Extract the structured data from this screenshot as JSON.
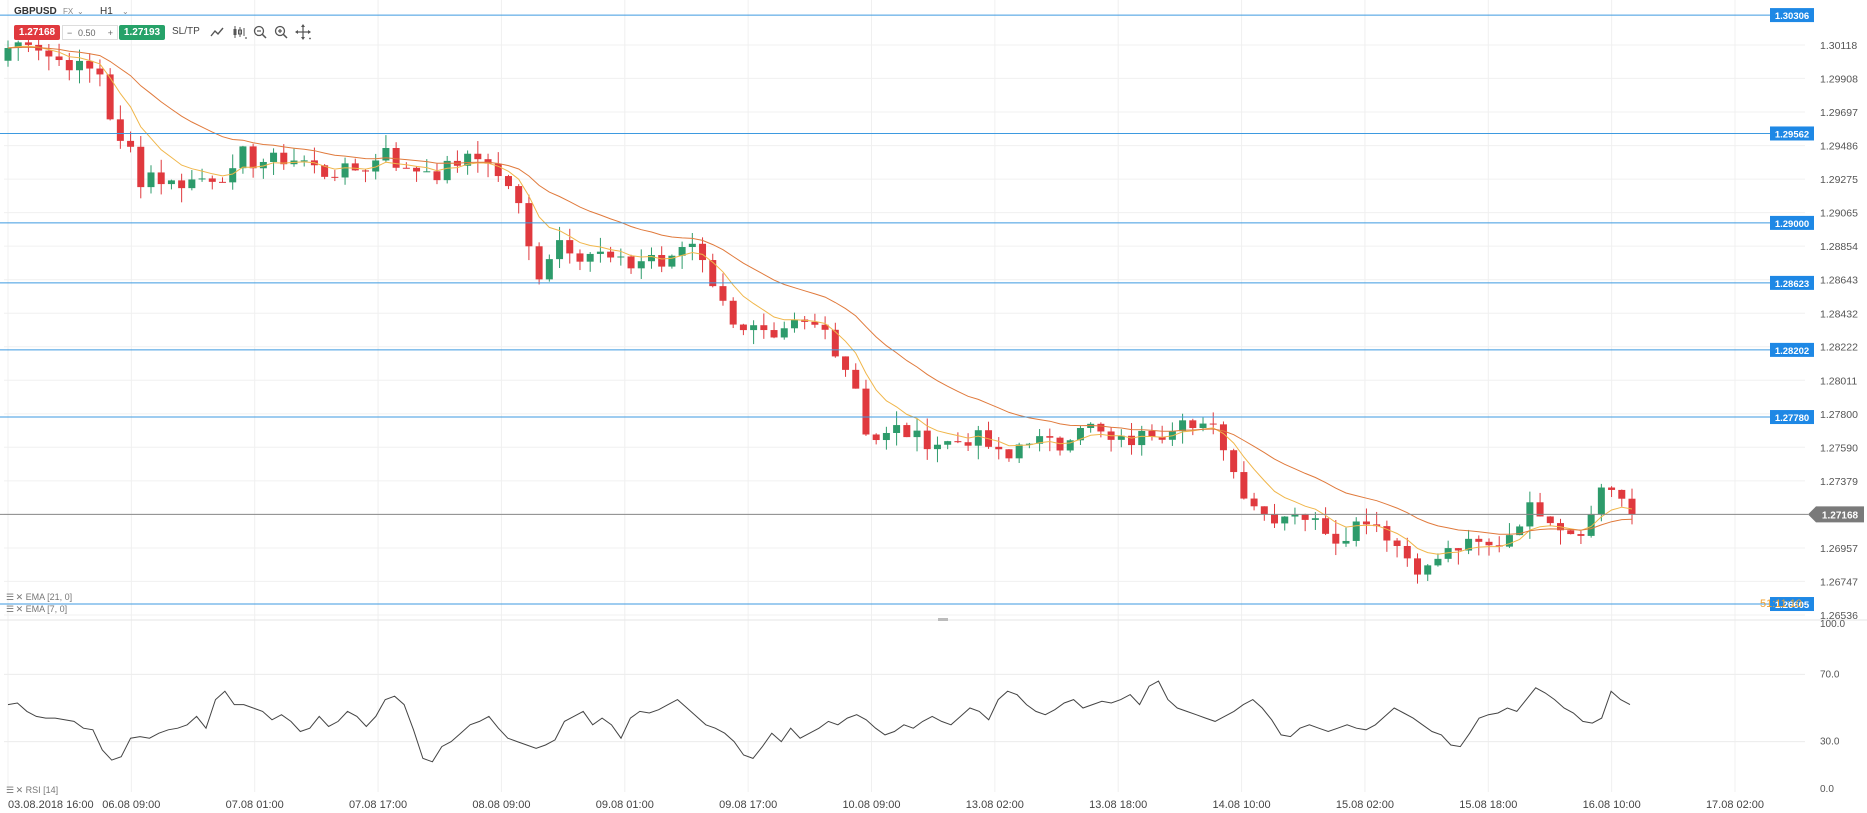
{
  "toolbar": {
    "symbol": "GBPUSD",
    "market": "FX",
    "timeframe": "H1",
    "sell_price": "1.27168",
    "lot_minus": "−",
    "lot_size": "0.50",
    "lot_plus": "+",
    "buy_price": "1.27193",
    "sltp_label": "SL/TP",
    "icons": [
      "line-chart-icon",
      "candlestick-icon",
      "zoom-out-icon",
      "zoom-in-icon",
      "crosshair-icon"
    ]
  },
  "indicators": {
    "ema21_label": "EMA [21, 0]",
    "ema7_label": "EMA [7, 0]",
    "rsi_label": "RSI [14]"
  },
  "countdown": "51:11:10",
  "colors": {
    "bull": "#2d9b6b",
    "bear": "#e0393e",
    "ema21": "#e07a3c",
    "ema7": "#f0b64a",
    "hline": "#3d9ae0",
    "hline_tag": "#1e88e5",
    "price_line": "#888888",
    "rsi": "#444444"
  },
  "chart_data": {
    "type": "candlestick",
    "symbol": "GBPUSD",
    "interval": "H1",
    "price_axis": {
      "ticks": [
        "1.30118",
        "1.29908",
        "1.29697",
        "1.29486",
        "1.29275",
        "1.29065",
        "1.28854",
        "1.28643",
        "1.28432",
        "1.28222",
        "1.28011",
        "1.27800",
        "1.27590",
        "1.27379",
        "1.27168",
        "1.26957",
        "1.26747",
        "1.26536"
      ],
      "ylim": [
        1.265,
        1.3035
      ]
    },
    "time_axis": {
      "ticks": [
        "03.08.2018 16:00",
        "06.08 09:00",
        "07.08 01:00",
        "07.08 17:00",
        "08.08 09:00",
        "09.08 01:00",
        "09.08 17:00",
        "10.08 09:00",
        "13.08 02:00",
        "13.08 18:00",
        "14.08 10:00",
        "15.08 02:00",
        "15.08 18:00",
        "16.08 10:00",
        "17.08 02:00"
      ]
    },
    "horizontal_lines": [
      "1.30306",
      "1.29562",
      "1.29000",
      "1.28623",
      "1.28202",
      "1.27780",
      "1.26605"
    ],
    "current_price": "1.27168",
    "candles_count": 160,
    "close_path": [
      [
        0,
        1.301
      ],
      [
        3,
        1.3016
      ],
      [
        6,
        1.3004
      ],
      [
        10,
        1.2998
      ],
      [
        13,
        1.2994
      ],
      [
        14,
        1.297
      ],
      [
        15,
        1.296
      ],
      [
        16,
        1.2944
      ],
      [
        18,
        1.2948
      ],
      [
        19,
        1.291
      ],
      [
        20,
        1.2932
      ],
      [
        22,
        1.2925
      ],
      [
        24,
        1.2925
      ],
      [
        27,
        1.2928
      ],
      [
        30,
        1.293
      ],
      [
        32,
        1.293
      ],
      [
        33,
        1.2946
      ],
      [
        34,
        1.2938
      ],
      [
        38,
        1.294
      ],
      [
        41,
        1.294
      ],
      [
        44,
        1.2931
      ],
      [
        48,
        1.2933
      ],
      [
        51,
        1.2936
      ],
      [
        53,
        1.295
      ],
      [
        55,
        1.2931
      ],
      [
        58,
        1.2935
      ],
      [
        60,
        1.2931
      ],
      [
        63,
        1.2939
      ],
      [
        67,
        1.2941
      ],
      [
        68,
        1.293
      ],
      [
        70,
        1.2924
      ],
      [
        71,
        1.2916
      ],
      [
        72,
        1.29
      ],
      [
        73,
        1.288
      ],
      [
        74,
        1.2866
      ],
      [
        75,
        1.2875
      ],
      [
        77,
        1.289
      ],
      [
        80,
        1.288
      ],
      [
        82,
        1.2882
      ],
      [
        85,
        1.2875
      ],
      [
        87,
        1.2873
      ],
      [
        90,
        1.288
      ],
      [
        92,
        1.287
      ],
      [
        94,
        1.2885
      ],
      [
        96,
        1.2888
      ],
      [
        97,
        1.288
      ],
      [
        98,
        1.2868
      ],
      [
        100,
        1.2848
      ],
      [
        102,
        1.2836
      ],
      [
        105,
        1.2832
      ],
      [
        107,
        1.2823
      ],
      [
        110,
        1.2836
      ],
      [
        114,
        1.2834
      ],
      [
        117,
        1.281
      ],
      [
        119,
        1.2793
      ],
      [
        120,
        1.2768
      ],
      [
        122,
        1.2763
      ],
      [
        124,
        1.2771
      ],
      [
        127,
        1.2765
      ],
      [
        129,
        1.2762
      ],
      [
        132,
        1.2762
      ],
      [
        134,
        1.2764
      ],
      [
        136,
        1.2765
      ],
      [
        138,
        1.2755
      ],
      [
        140,
        1.2751
      ],
      [
        142,
        1.2766
      ],
      [
        145,
        1.2762
      ],
      [
        147,
        1.2759
      ],
      [
        148,
        1.2766
      ],
      [
        150,
        1.2775
      ],
      [
        152,
        1.277
      ],
      [
        154,
        1.2762
      ],
      [
        157,
        1.2763
      ],
      [
        159,
        1.2767
      ],
      [
        160,
        1.2769
      ],
      [
        162,
        1.2768
      ],
      [
        164,
        1.2782
      ],
      [
        166,
        1.2768
      ],
      [
        168,
        1.2773
      ],
      [
        170,
        1.276
      ],
      [
        172,
        1.2735
      ],
      [
        174,
        1.2725
      ],
      [
        176,
        1.2715
      ],
      [
        178,
        1.2716
      ],
      [
        180,
        1.272
      ],
      [
        182,
        1.2713
      ],
      [
        184,
        1.2709
      ],
      [
        186,
        1.27
      ],
      [
        188,
        1.271
      ],
      [
        190,
        1.2715
      ],
      [
        192,
        1.2708
      ],
      [
        194,
        1.2698
      ],
      [
        196,
        1.2688
      ],
      [
        198,
        1.268
      ],
      [
        200,
        1.269
      ],
      [
        202,
        1.2695
      ],
      [
        205,
        1.2698
      ],
      [
        207,
        1.2696
      ],
      [
        209,
        1.27
      ],
      [
        211,
        1.2712
      ],
      [
        213,
        1.2722
      ],
      [
        215,
        1.2718
      ],
      [
        217,
        1.271
      ],
      [
        219,
        1.2705
      ],
      [
        221,
        1.2712
      ],
      [
        223,
        1.2738
      ],
      [
        225,
        1.273
      ],
      [
        227,
        1.2717
      ]
    ],
    "rsi": {
      "scale": [
        "100.0",
        "70.0",
        "30.0",
        "0.0"
      ],
      "ylim": [
        0,
        100
      ],
      "values": [
        52,
        53,
        48,
        45,
        44,
        44,
        43,
        42,
        38,
        37,
        25,
        19,
        21,
        32,
        33,
        32,
        35,
        37,
        38,
        40,
        45,
        38,
        55,
        60,
        52,
        52,
        50,
        48,
        43,
        46,
        42,
        36,
        38,
        45,
        39,
        42,
        48,
        45,
        39,
        45,
        55,
        57,
        52,
        37,
        20,
        18,
        27,
        30,
        35,
        40,
        42,
        45,
        38,
        32,
        30,
        28,
        26,
        28,
        31,
        42,
        45,
        48,
        40,
        44,
        40,
        32,
        44,
        48,
        47,
        49,
        52,
        55,
        50,
        45,
        40,
        38,
        35,
        30,
        22,
        20,
        27,
        35,
        30,
        38,
        32,
        35,
        38,
        42,
        40,
        44,
        46,
        43,
        38,
        34,
        36,
        40,
        38,
        42,
        45,
        42,
        40,
        45,
        50,
        48,
        43,
        55,
        60,
        58,
        52,
        48,
        46,
        49,
        53,
        55,
        50,
        52,
        54,
        53,
        55,
        58,
        52,
        63,
        66,
        55,
        50,
        48,
        46,
        44,
        42,
        45,
        48,
        52,
        55,
        50,
        43,
        34,
        33,
        38,
        40,
        38,
        36,
        38,
        40,
        38,
        37,
        40,
        45,
        50,
        47,
        44,
        40,
        36,
        34,
        28,
        27,
        35,
        44,
        46,
        47,
        50,
        48,
        55,
        62,
        59,
        55,
        50,
        47,
        42,
        41,
        44,
        60,
        55,
        52
      ]
    }
  }
}
